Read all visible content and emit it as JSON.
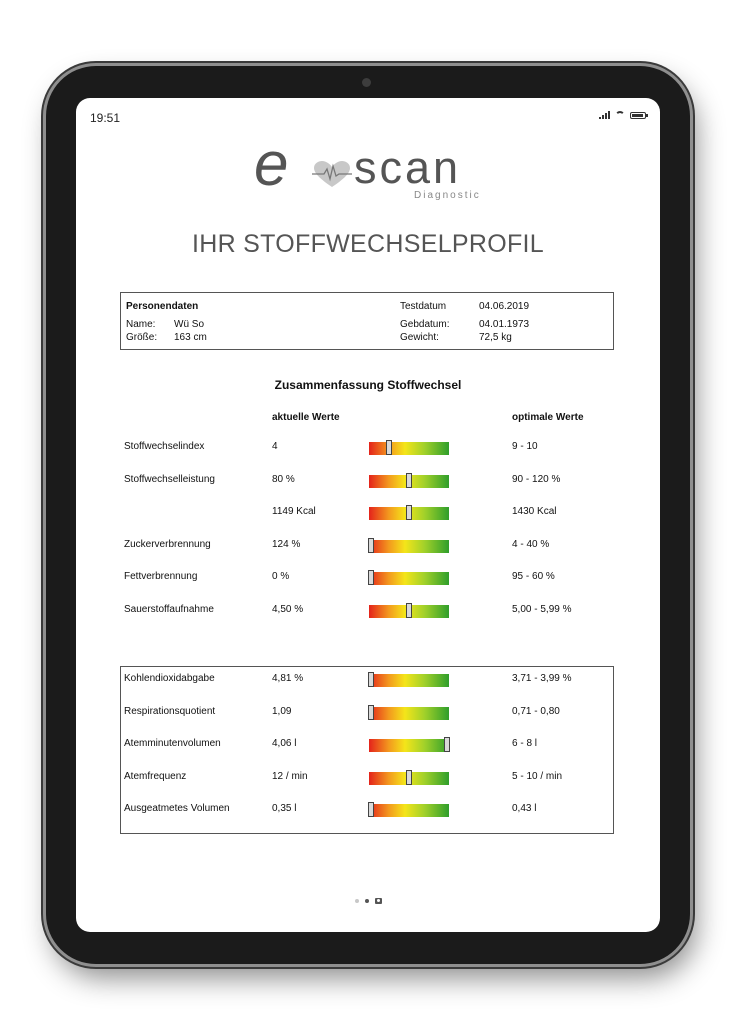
{
  "status_bar": {
    "time": "19:51",
    "signal_icon": "signal-icon",
    "wifi_icon": "wifi-icon",
    "battery_icon": "battery-icon"
  },
  "logo": {
    "e": "e",
    "scan": "scan",
    "sub": "Diagnostic",
    "heart_icon": "heart-pulse-icon"
  },
  "title": "IHR STOFFWECHSELPROFIL",
  "person": {
    "heading": "Personendaten",
    "name_label": "Name:",
    "name_value": "Wü So",
    "height_label": "Größe:",
    "height_value": "163 cm",
    "testdate_label": "Testdatum",
    "testdate_value": "04.06.2019",
    "birthdate_label": "Gebdatum:",
    "birthdate_value": "04.01.1973",
    "weight_label": "Gewicht:",
    "weight_value": "72,5 kg"
  },
  "summary": {
    "title": "Zusammenfassung Stoffwechsel",
    "current_header": "aktuelle Werte",
    "optimal_header": "optimale Werte"
  },
  "metabolism_rows": [
    {
      "label": "Stoffwechselindex",
      "current": "4",
      "optimal": "9 - 10",
      "level": 0.25
    },
    {
      "label": "Stoffwechselleistung",
      "current": "80 %",
      "optimal": "90 - 120 %",
      "level": 0.5
    },
    {
      "label": "",
      "current": "1149 Kcal",
      "optimal": "1430 Kcal",
      "level": 0.5
    },
    {
      "label": "Zuckerverbrennung",
      "current": "124 %",
      "optimal": "4 - 40 %",
      "level": 0.03
    },
    {
      "label": "Fettverbrennung",
      "current": "0 %",
      "optimal": "95 - 60 %",
      "level": 0.03
    },
    {
      "label": "Sauerstoffaufnahme",
      "current": "4,50 %",
      "optimal": "5,00 - 5,99 %",
      "level": 0.5
    }
  ],
  "respiration_rows": [
    {
      "label": "Kohlendioxidabgabe",
      "current": "4,81 %",
      "optimal": "3,71 - 3,99 %",
      "level": 0.03
    },
    {
      "label": "Respirationsquotient",
      "current": "1,09",
      "optimal": "0,71 - 0,80",
      "level": 0.03
    },
    {
      "label": "Atemminutenvolumen",
      "current": "4,06 l",
      "optimal": "6 - 8 l",
      "level": 0.97
    },
    {
      "label": "Atemfrequenz",
      "current": "12 / min",
      "optimal": "5 - 10 / min",
      "level": 0.5
    },
    {
      "label": "Ausgeatmetes Volumen",
      "current": "0,35 l",
      "optimal": "0,43 l",
      "level": 0.03
    }
  ],
  "pager": {
    "pages": 3,
    "active": 1
  }
}
